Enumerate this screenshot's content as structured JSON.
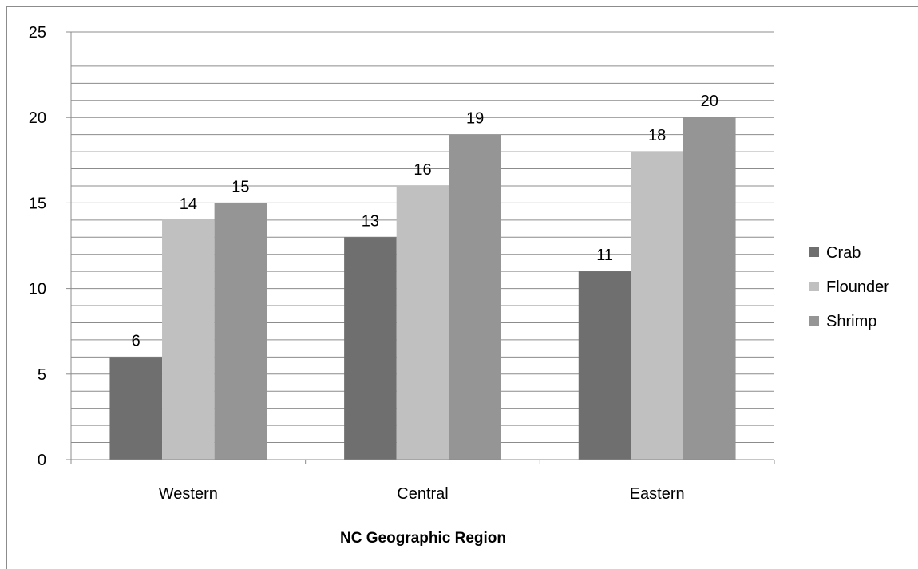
{
  "chart_data": {
    "type": "bar",
    "title": "",
    "xlabel": "NC Geographic Region",
    "ylabel": "",
    "categories": [
      "Western",
      "Central",
      "Eastern"
    ],
    "series": [
      {
        "name": "Crab",
        "values": [
          6,
          13,
          11
        ],
        "color": "#6f6f6f"
      },
      {
        "name": "Flounder",
        "values": [
          14,
          16,
          18
        ],
        "color": "#c0c0c0"
      },
      {
        "name": "Shrimp",
        "values": [
          15,
          19,
          20
        ],
        "color": "#959595"
      }
    ],
    "ylim": [
      0,
      25
    ],
    "yticks": [
      "0",
      "5",
      "10",
      "15",
      "20",
      "25"
    ],
    "grid": true,
    "legend_position": "right"
  }
}
